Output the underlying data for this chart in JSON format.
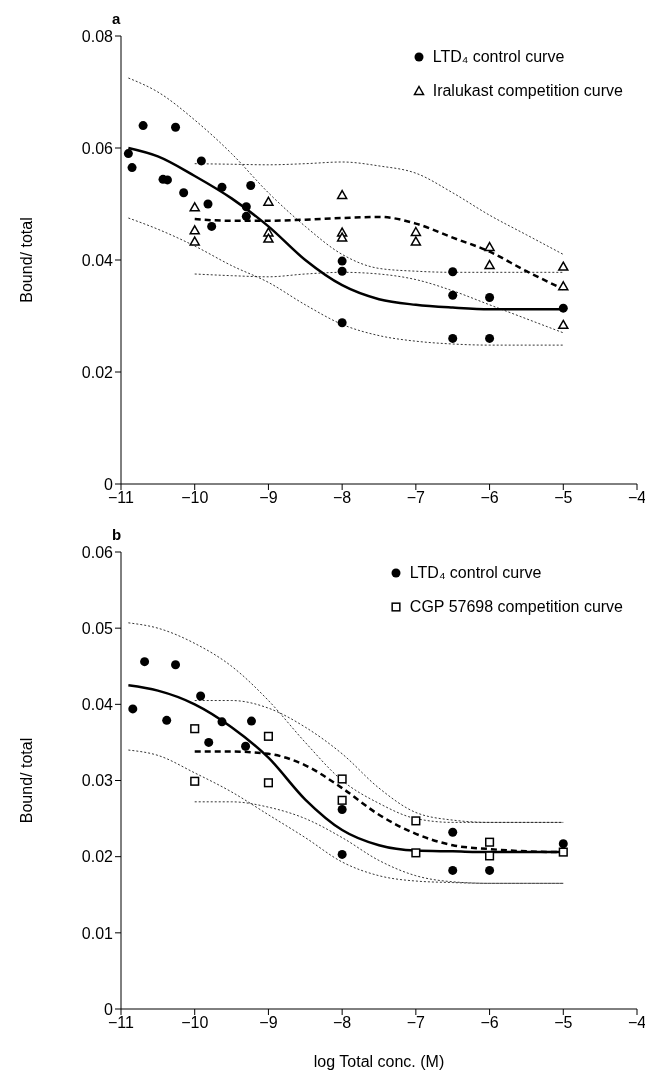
{
  "chart_data": [
    {
      "type": "scatter",
      "title": "a",
      "ylabel": "Bound/ total",
      "xlim": [
        -11,
        -4
      ],
      "ylim": [
        0,
        0.08
      ],
      "xticks": [
        {
          "value": -11,
          "label": "−11"
        },
        {
          "value": -10,
          "label": "−10"
        },
        {
          "value": -9,
          "label": "−9"
        },
        {
          "value": -8,
          "label": "−8"
        },
        {
          "value": -7,
          "label": "−7"
        },
        {
          "value": -6,
          "label": "−6"
        },
        {
          "value": -5,
          "label": "−5"
        },
        {
          "value": -4,
          "label": "−4"
        }
      ],
      "yticks": [
        0,
        0.02,
        0.04,
        0.06,
        0.08
      ],
      "grid": false,
      "legend": "top right",
      "series": [
        {
          "name": "LTD₄ control curve",
          "marker": "circle",
          "color": "#000000",
          "x": [
            -10.9,
            -10.85,
            -10.7,
            -10.43,
            -10.37,
            -10.26,
            -10.15,
            -9.91,
            -9.82,
            -9.77,
            -9.63,
            -9.3,
            -9.3,
            -9.24,
            -8,
            -8,
            -8,
            -6.5,
            -6.5,
            -6.5,
            -6,
            -6,
            -5
          ],
          "values": [
            0.059,
            0.0565,
            0.064,
            0.0544,
            0.0543,
            0.0637,
            0.052,
            0.0577,
            0.05,
            0.046,
            0.053,
            0.0495,
            0.0478,
            0.0533,
            0.0398,
            0.038,
            0.0288,
            0.0379,
            0.0337,
            0.026,
            0.0333,
            0.026,
            0.0314
          ]
        },
        {
          "name": "Iralukast competition curve",
          "marker": "triangle",
          "color": "#000000",
          "x": [
            -10,
            -10,
            -10,
            -9,
            -9,
            -9,
            -8,
            -8,
            -8,
            -7,
            -7,
            -6,
            -6,
            -5,
            -5,
            -5
          ],
          "values": [
            0.0494,
            0.0453,
            0.0433,
            0.0504,
            0.0449,
            0.0438,
            0.0516,
            0.0449,
            0.044,
            0.045,
            0.0433,
            0.0423,
            0.0391,
            0.0388,
            0.0353,
            0.0284
          ]
        },
        {
          "type": "line",
          "line_style": "solid",
          "color": "#000000",
          "x": [
            -10.9,
            -10.5,
            -10,
            -9.5,
            -9,
            -8.5,
            -8,
            -7.5,
            -7,
            -6.5,
            -6,
            -5.5,
            -5
          ],
          "values": [
            0.06,
            0.0585,
            0.055,
            0.051,
            0.046,
            0.04,
            0.0355,
            0.033,
            0.032,
            0.0315,
            0.0312,
            0.0312,
            0.0312
          ]
        },
        {
          "type": "line",
          "line_style": "dotted",
          "color": "#000000",
          "x": [
            -10.9,
            -10.5,
            -10,
            -9.5,
            -9,
            -8.5,
            -8,
            -7.5,
            -7,
            -6.5,
            -6,
            -5.5,
            -5
          ],
          "values": [
            0.0725,
            0.07,
            0.065,
            0.059,
            0.052,
            0.046,
            0.041,
            0.0385,
            0.038,
            0.0378,
            0.0378,
            0.0378,
            0.0378
          ]
        },
        {
          "type": "line",
          "line_style": "dotted",
          "color": "#000000",
          "x": [
            -10.9,
            -10.5,
            -10,
            -9.5,
            -9,
            -8.5,
            -8,
            -7.5,
            -7,
            -6.5,
            -6,
            -5.5,
            -5
          ],
          "values": [
            0.0475,
            0.0455,
            0.0425,
            0.039,
            0.036,
            0.032,
            0.0285,
            0.0265,
            0.0255,
            0.025,
            0.0248,
            0.0248,
            0.0248
          ]
        },
        {
          "type": "line",
          "line_style": "dashed",
          "color": "#000000",
          "x": [
            -10,
            -9.5,
            -9,
            -8.5,
            -8,
            -7.5,
            -7,
            -6.5,
            -6,
            -5.5,
            -5
          ],
          "values": [
            0.0473,
            0.047,
            0.047,
            0.0472,
            0.0475,
            0.0477,
            0.0465,
            0.044,
            0.0415,
            0.038,
            0.0348
          ]
        },
        {
          "type": "line",
          "line_style": "dotted",
          "color": "#000000",
          "x": [
            -10,
            -9.5,
            -9,
            -8.5,
            -8,
            -7.5,
            -7,
            -6.5,
            -6,
            -5.5,
            -5
          ],
          "values": [
            0.0572,
            0.0571,
            0.057,
            0.0572,
            0.0575,
            0.0568,
            0.0555,
            0.052,
            0.048,
            0.0445,
            0.041
          ]
        },
        {
          "type": "line",
          "line_style": "dotted",
          "color": "#000000",
          "x": [
            -10,
            -9.5,
            -9,
            -8.5,
            -8,
            -7.5,
            -7,
            -6.5,
            -6,
            -5.5,
            -5
          ],
          "values": [
            0.0375,
            0.0372,
            0.037,
            0.0375,
            0.0378,
            0.0375,
            0.0365,
            0.0345,
            0.032,
            0.0295,
            0.027
          ]
        }
      ]
    },
    {
      "type": "scatter",
      "title": "b",
      "ylabel": "Bound/ total",
      "xlabel": "log Total conc. (M)",
      "xlim": [
        -11,
        -4
      ],
      "ylim": [
        0,
        0.06
      ],
      "xticks": [
        {
          "value": -11,
          "label": "−11"
        },
        {
          "value": -10,
          "label": "−10"
        },
        {
          "value": -9,
          "label": "−9"
        },
        {
          "value": -8,
          "label": "−8"
        },
        {
          "value": -7,
          "label": "−7"
        },
        {
          "value": -6,
          "label": "−6"
        },
        {
          "value": -5,
          "label": "−5"
        },
        {
          "value": -4,
          "label": "−4"
        }
      ],
      "yticks": [
        0,
        0.01,
        0.02,
        0.03,
        0.04,
        0.05,
        0.06
      ],
      "grid": false,
      "legend": "top right",
      "series": [
        {
          "name": "LTD₄ control curve",
          "marker": "circle",
          "color": "#000000",
          "x": [
            -10.84,
            -10.68,
            -10.26,
            -10.38,
            -9.92,
            -9.81,
            -9.63,
            -9.31,
            -9.23,
            -8,
            -8,
            -6.5,
            -6.5,
            -6,
            -5
          ],
          "values": [
            0.0394,
            0.0456,
            0.0452,
            0.0379,
            0.0411,
            0.035,
            0.0377,
            0.0345,
            0.0378,
            0.0262,
            0.0203,
            0.0232,
            0.0182,
            0.0182,
            0.0217
          ]
        },
        {
          "name": "CGP 57698 competition curve",
          "marker": "square",
          "color": "#000000",
          "x": [
            -10,
            -10,
            -9,
            -9,
            -8,
            -8,
            -7,
            -7,
            -6,
            -6,
            -5
          ],
          "values": [
            0.0368,
            0.0299,
            0.0358,
            0.0297,
            0.0302,
            0.0274,
            0.0247,
            0.0205,
            0.0219,
            0.0201,
            0.0206
          ]
        },
        {
          "type": "line",
          "line_style": "solid",
          "color": "#000000",
          "x": [
            -10.9,
            -10.5,
            -10,
            -9.5,
            -9,
            -8.5,
            -8,
            -7.5,
            -7,
            -6.5,
            -6,
            -5.5,
            -5
          ],
          "values": [
            0.0425,
            0.0418,
            0.04,
            0.037,
            0.033,
            0.0275,
            0.0235,
            0.0215,
            0.0208,
            0.0207,
            0.0206,
            0.0206,
            0.0206
          ]
        },
        {
          "type": "line",
          "line_style": "dotted",
          "color": "#000000",
          "x": [
            -10.9,
            -10.5,
            -10,
            -9.5,
            -9,
            -8.5,
            -8,
            -7.5,
            -7,
            -6.5,
            -6,
            -5.5,
            -5
          ],
          "values": [
            0.0507,
            0.05,
            0.048,
            0.045,
            0.0405,
            0.035,
            0.03,
            0.027,
            0.025,
            0.0245,
            0.0245,
            0.0245,
            0.0245
          ]
        },
        {
          "type": "line",
          "line_style": "dotted",
          "color": "#000000",
          "x": [
            -10.9,
            -10.5,
            -10,
            -9.5,
            -9,
            -8.5,
            -8,
            -7.5,
            -7,
            -6.5,
            -6,
            -5.5,
            -5
          ],
          "values": [
            0.034,
            0.0333,
            0.031,
            0.0285,
            0.0255,
            0.0225,
            0.0193,
            0.0175,
            0.0168,
            0.0166,
            0.0165,
            0.0165,
            0.0165
          ]
        },
        {
          "type": "line",
          "line_style": "dashed",
          "color": "#000000",
          "x": [
            -10,
            -9.5,
            -9,
            -8.5,
            -8,
            -7.5,
            -7,
            -6.5,
            -6,
            -5.5,
            -5
          ],
          "values": [
            0.0338,
            0.0338,
            0.0335,
            0.032,
            0.029,
            0.0255,
            0.023,
            0.0215,
            0.021,
            0.0207,
            0.0206
          ]
        },
        {
          "type": "line",
          "line_style": "dotted",
          "color": "#000000",
          "x": [
            -10,
            -9.5,
            -9,
            -8.5,
            -8,
            -7.5,
            -7,
            -6.5,
            -6,
            -5.5,
            -5
          ],
          "values": [
            0.0405,
            0.0405,
            0.0395,
            0.037,
            0.0335,
            0.029,
            0.0258,
            0.0248,
            0.0245,
            0.0245,
            0.0245
          ]
        },
        {
          "type": "line",
          "line_style": "dotted",
          "color": "#000000",
          "x": [
            -10,
            -9.5,
            -9,
            -8.5,
            -8,
            -7.5,
            -7,
            -6.5,
            -6,
            -5.5,
            -5
          ],
          "values": [
            0.0272,
            0.0272,
            0.0265,
            0.025,
            0.0225,
            0.0195,
            0.0175,
            0.0167,
            0.0165,
            0.0165,
            0.0165
          ]
        }
      ]
    }
  ]
}
